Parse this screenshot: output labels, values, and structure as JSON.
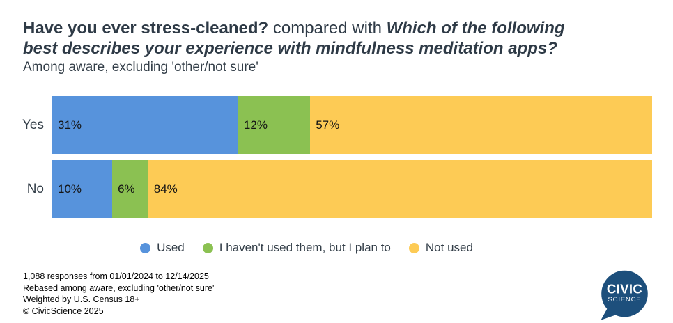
{
  "header": {
    "title_bold": "Have you ever stress-cleaned?",
    "title_connector": " compared with ",
    "title_italic": "Which of the following best describes your experience with mindfulness meditation apps?",
    "subtitle": "Among aware, excluding 'other/not sure'"
  },
  "chart_data": {
    "type": "bar",
    "orientation": "horizontal",
    "stacked": true,
    "categories": [
      "Yes",
      "No"
    ],
    "series": [
      {
        "name": "Used",
        "color": "#5793DC",
        "values": [
          31,
          10
        ]
      },
      {
        "name": "I haven't used them, but I plan to",
        "color": "#8BC152",
        "values": [
          12,
          6
        ]
      },
      {
        "name": "Not used",
        "color": "#FDCB55",
        "values": [
          57,
          84
        ]
      }
    ],
    "xlim": [
      0,
      100
    ],
    "value_suffix": "%",
    "data_labels": true,
    "legend_position": "bottom",
    "grid": false,
    "title": "Have you ever stress-cleaned? compared with Which of the following best describes your experience with mindfulness meditation apps?",
    "subtitle": "Among aware, excluding 'other/not sure'"
  },
  "footer": {
    "lines": [
      "1,088 responses from 01/01/2024 to 12/14/2025",
      "Rebased among aware, excluding 'other/not sure'",
      "Weighted by U.S. Census 18+",
      "© CivicScience 2025"
    ]
  },
  "logo": {
    "line1": "CIVIC",
    "line2": "SCIENCE",
    "color": "#1D4F7C"
  },
  "colors": {
    "axis_line": "#cccccc",
    "title_text": "#2E3A46",
    "label_text": "#141414"
  }
}
